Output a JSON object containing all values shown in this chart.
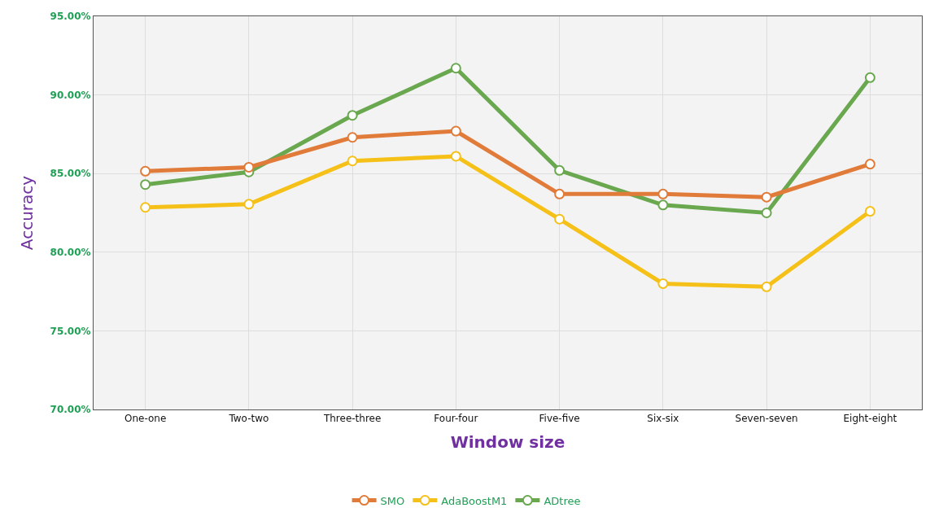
{
  "chart_data": {
    "type": "line",
    "xlabel": "Window size",
    "ylabel": "Accuracy",
    "categories": [
      "One-one",
      "Two-two",
      "Three-three",
      "Four-four",
      "Five-five",
      "Six-six",
      "Seven-seven",
      "Eight-eight"
    ],
    "series": [
      {
        "name": "SMO",
        "color": "#e07b39",
        "values": [
          85.15,
          85.4,
          87.3,
          87.7,
          83.7,
          83.7,
          83.5,
          85.6
        ]
      },
      {
        "name": "AdaBoostM1",
        "color": "#f5c018",
        "values": [
          82.85,
          83.05,
          85.8,
          86.1,
          82.1,
          78.0,
          77.8,
          82.6
        ]
      },
      {
        "name": "ADtree",
        "color": "#6aa84f",
        "values": [
          84.3,
          85.1,
          88.7,
          91.7,
          85.2,
          83.0,
          82.5,
          91.1
        ]
      }
    ],
    "ylim": [
      70,
      95
    ],
    "yticks": [
      {
        "value": 70,
        "label": "70.00%"
      },
      {
        "value": 75,
        "label": "75.00%"
      },
      {
        "value": 80,
        "label": "80.00%"
      },
      {
        "value": 85,
        "label": "85.00%"
      },
      {
        "value": 90,
        "label": "90.00%"
      },
      {
        "value": 95,
        "label": "95.00%"
      }
    ],
    "grid": true,
    "legend": "bottom",
    "marker": "circle",
    "line_style": "solid"
  }
}
